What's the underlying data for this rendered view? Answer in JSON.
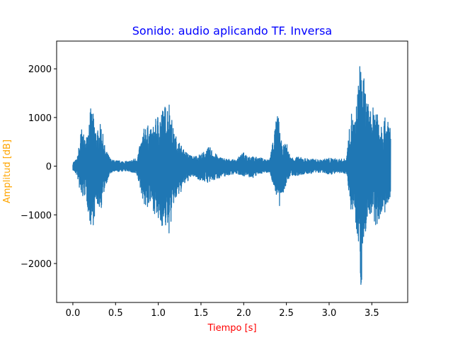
{
  "chart_data": {
    "type": "line",
    "title": "Sonido: audio aplicando TF. Inversa",
    "xlabel": "Tiempo [s]",
    "ylabel": "Amplitud [dB]",
    "xlim": [
      -0.19,
      3.92
    ],
    "ylim": [
      -2800,
      2570
    ],
    "xticks": [
      0.0,
      0.5,
      1.0,
      1.5,
      2.0,
      2.5,
      3.0,
      3.5
    ],
    "xtick_labels": [
      "0.0",
      "0.5",
      "1.0",
      "1.5",
      "2.0",
      "2.5",
      "3.0",
      "3.5"
    ],
    "yticks": [
      -2000,
      -1000,
      0,
      1000,
      2000
    ],
    "ytick_labels": [
      "−2000",
      "−1000",
      "0",
      "1000",
      "2000"
    ],
    "grid": false,
    "series": [
      {
        "color": "#1f77b4",
        "x_start": 0.0,
        "x_end": 3.72,
        "envelope": {
          "t": [
            0.0,
            0.05,
            0.1,
            0.15,
            0.2,
            0.23,
            0.28,
            0.33,
            0.38,
            0.45,
            0.55,
            0.65,
            0.75,
            0.85,
            0.92,
            1.0,
            1.05,
            1.1,
            1.13,
            1.18,
            1.25,
            1.3,
            1.4,
            1.5,
            1.6,
            1.7,
            1.8,
            1.9,
            2.0,
            2.1,
            2.2,
            2.3,
            2.4,
            2.42,
            2.45,
            2.5,
            2.55,
            2.6,
            2.7,
            2.8,
            2.9,
            3.0,
            3.1,
            3.2,
            3.26,
            3.3,
            3.35,
            3.37,
            3.4,
            3.45,
            3.5,
            3.55,
            3.6,
            3.65,
            3.72
          ],
          "upper": [
            80,
            150,
            800,
            500,
            1200,
            1150,
            700,
            900,
            350,
            130,
            110,
            100,
            180,
            900,
            750,
            1100,
            1200,
            1300,
            1380,
            700,
            500,
            330,
            200,
            250,
            400,
            200,
            150,
            130,
            280,
            200,
            170,
            130,
            1150,
            800,
            400,
            500,
            170,
            200,
            170,
            150,
            130,
            170,
            150,
            150,
            1150,
            900,
            1900,
            2330,
            1900,
            1300,
            1130,
            1400,
            1000,
            1000,
            900
          ],
          "lower": [
            -80,
            -200,
            -700,
            -600,
            -1200,
            -1300,
            -800,
            -900,
            -400,
            -130,
            -110,
            -100,
            -200,
            -900,
            -800,
            -1200,
            -1250,
            -1300,
            -1420,
            -800,
            -600,
            -400,
            -200,
            -300,
            -350,
            -250,
            -200,
            -150,
            -200,
            -250,
            -150,
            -120,
            -700,
            -900,
            -600,
            -400,
            -170,
            -220,
            -170,
            -150,
            -130,
            -170,
            -150,
            -150,
            -950,
            -1000,
            -1700,
            -2600,
            -1900,
            -1000,
            -1100,
            -1300,
            -1000,
            -1000,
            -800
          ]
        }
      }
    ]
  }
}
